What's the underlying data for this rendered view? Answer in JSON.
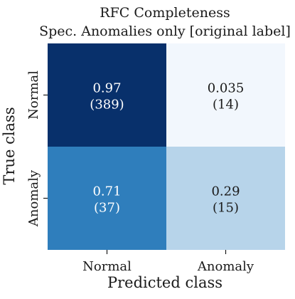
{
  "chart_data": {
    "type": "heatmap",
    "title": [
      "RFC Completeness",
      "Spec. Anomalies only [original label]"
    ],
    "xlabel": "Predicted class",
    "ylabel": "True class",
    "x_categories": [
      "Normal",
      "Anomaly"
    ],
    "y_categories": [
      "Normal",
      "Anomaly"
    ],
    "values": [
      [
        0.97,
        0.035
      ],
      [
        0.71,
        0.29
      ]
    ],
    "counts": [
      [
        389,
        14
      ],
      [
        37,
        15
      ]
    ],
    "cell_labels": [
      [
        [
          "0.97",
          "(389)"
        ],
        [
          "0.035",
          "(14)"
        ]
      ],
      [
        [
          "0.71",
          "(37)"
        ],
        [
          "0.29",
          "(15)"
        ]
      ]
    ],
    "colormap": "Blues",
    "colorbar": false,
    "cell_colors": [
      [
        "#08306b",
        "#f2f7fd"
      ],
      [
        "#2f7ebc",
        "#b7d4ea"
      ]
    ],
    "text_colors": [
      [
        "#ffffff",
        "#1a1a1a"
      ],
      [
        "#ffffff",
        "#1a1a1a"
      ]
    ]
  }
}
